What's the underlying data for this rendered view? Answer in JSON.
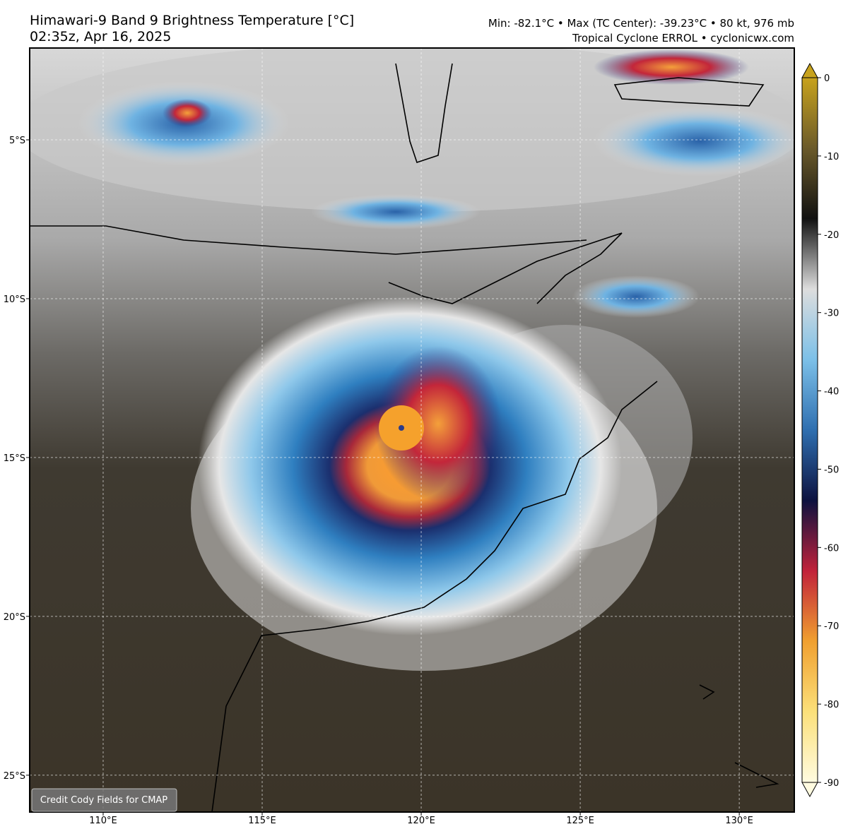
{
  "header": {
    "title": "Himawari-9 Band 9 Brightness Temperature [°C]",
    "time": "02:35z, Apr 16, 2025",
    "stats": "Min: -82.1°C • Max (TC Center): -39.23°C • 80 kt, 976 mb",
    "source": "Tropical Cyclone ERROL • cyclonicwx.com"
  },
  "map": {
    "lonlim": [
      107.69,
      131.73
    ],
    "latlim": [
      -2.11,
      -26.16
    ],
    "lon_ticks": [
      {
        "value": 110,
        "label": "110°E"
      },
      {
        "value": 115,
        "label": "115°E"
      },
      {
        "value": 120,
        "label": "120°E"
      },
      {
        "value": 125,
        "label": "125°E"
      },
      {
        "value": 130,
        "label": "130°E"
      }
    ],
    "lat_ticks": [
      {
        "value": -5,
        "label": "5°S"
      },
      {
        "value": -10,
        "label": "10°S"
      },
      {
        "value": -15,
        "label": "15°S"
      },
      {
        "value": -20,
        "label": "20°S"
      },
      {
        "value": -25,
        "label": "25°S"
      }
    ]
  },
  "colorbar": {
    "lim": [
      -90,
      0
    ],
    "ticks": [
      0,
      -10,
      -20,
      -30,
      -40,
      -50,
      -60,
      -70,
      -80,
      -90
    ]
  },
  "credit": "Credit Cody Fields for CMAP"
}
